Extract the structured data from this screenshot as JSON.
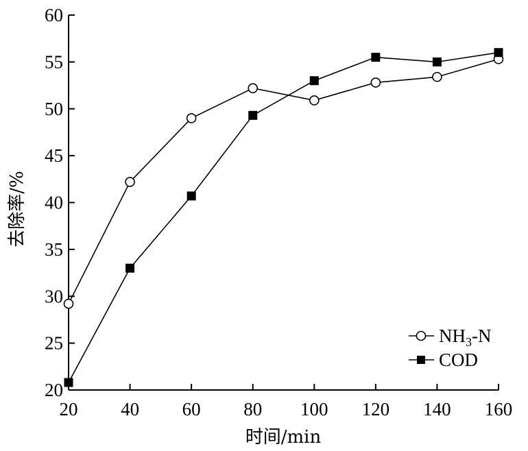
{
  "chart_data": {
    "type": "line",
    "title": "",
    "xlabel": "时间/min",
    "ylabel": "去除率/%",
    "x": [
      20,
      40,
      60,
      80,
      100,
      120,
      140,
      160
    ],
    "xticks": [
      "20",
      "40",
      "60",
      "80",
      "100",
      "120",
      "140",
      "160"
    ],
    "yticks": [
      "20",
      "25",
      "30",
      "35",
      "40",
      "45",
      "50",
      "55",
      "60"
    ],
    "xlim": [
      20,
      160
    ],
    "ylim": [
      20,
      60
    ],
    "grid": false,
    "legend_position": "bottom-right",
    "series": [
      {
        "name": "NH3-N",
        "marker": "open-circle",
        "color": "#000000",
        "values": [
          29.2,
          42.2,
          49.0,
          52.2,
          50.9,
          52.8,
          53.4,
          55.3
        ]
      },
      {
        "name": "COD",
        "marker": "filled-square",
        "color": "#000000",
        "values": [
          20.8,
          33.0,
          40.7,
          49.3,
          53.0,
          55.5,
          55.0,
          56.0
        ]
      }
    ]
  },
  "legend": [
    {
      "main": "NH",
      "sub": "3",
      "rest": "-N"
    },
    {
      "main": "COD",
      "sub": "",
      "rest": ""
    }
  ]
}
